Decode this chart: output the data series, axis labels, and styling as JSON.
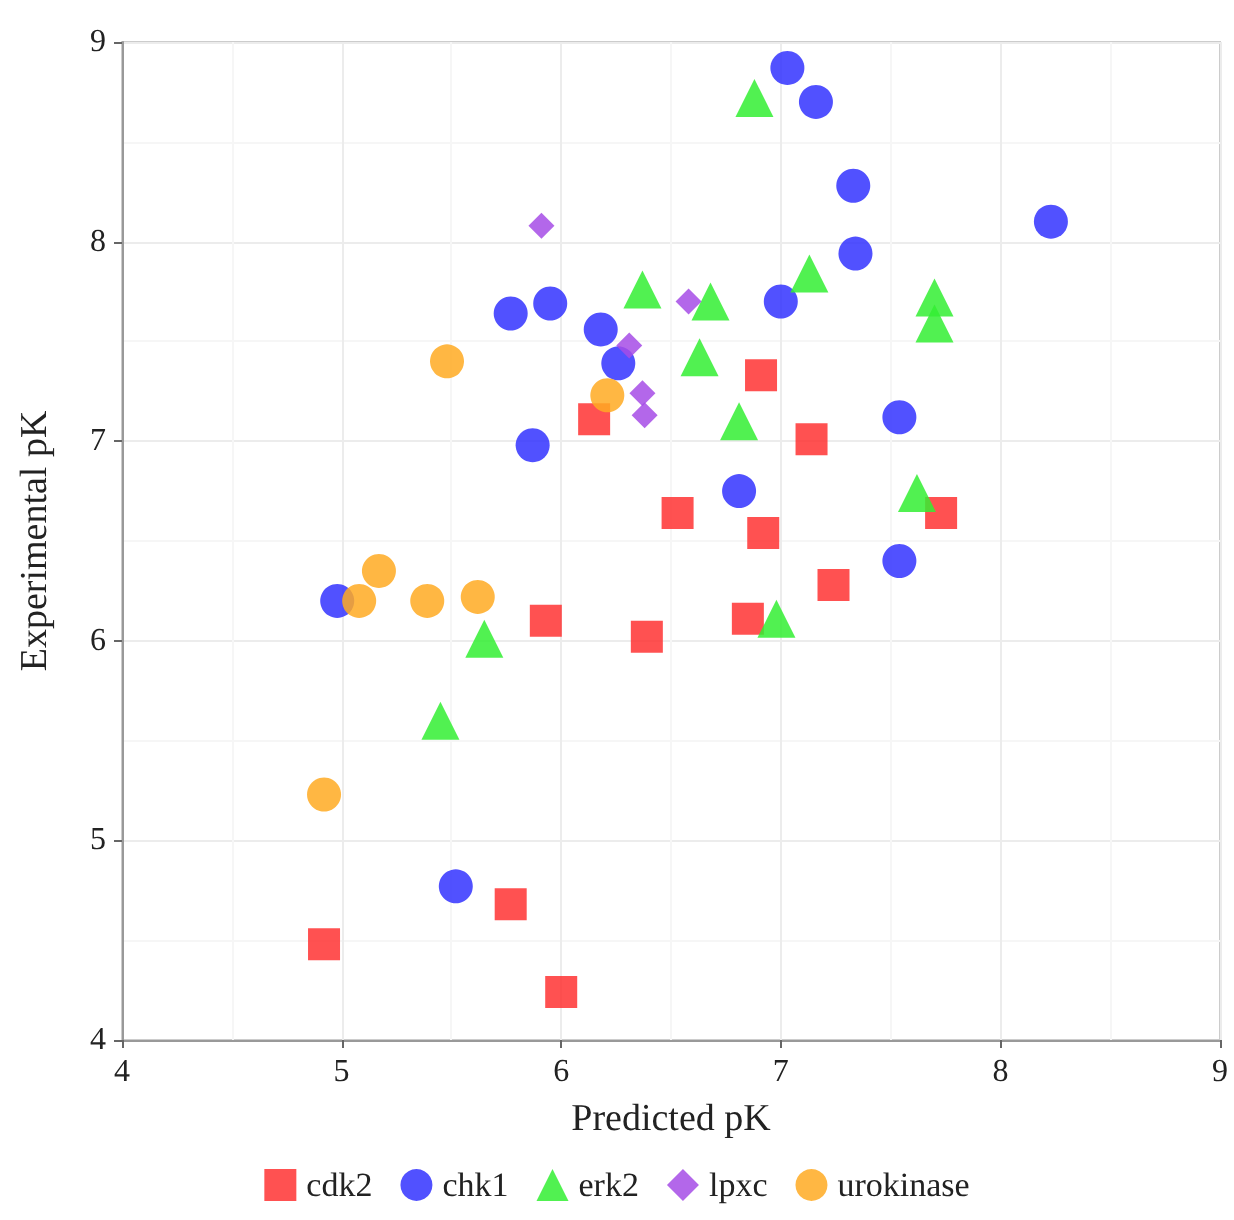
{
  "chart_data": {
    "type": "scatter",
    "xlabel": "Predicted pK",
    "ylabel": "Experimental pK",
    "xlim": [
      4,
      9
    ],
    "xticks": [
      4,
      5,
      6,
      7,
      8,
      9
    ],
    "ylim": [
      4,
      9
    ],
    "yticks": [
      4,
      5,
      6,
      7,
      8,
      9
    ],
    "grid": true,
    "legend": "bottom",
    "series": [
      {
        "name": "cdk2",
        "color": "#ff3333",
        "marker": "square",
        "x": [
          4.92,
          5.77,
          6.0,
          5.93,
          6.39,
          6.15,
          6.91,
          7.14,
          7.73,
          6.53,
          6.92,
          7.24,
          6.85
        ],
        "values": [
          4.48,
          4.68,
          4.24,
          6.1,
          6.02,
          7.11,
          7.33,
          7.01,
          6.64,
          6.64,
          6.54,
          6.28,
          6.11
        ]
      },
      {
        "name": "chk1",
        "color": "#3333ff",
        "marker": "circle",
        "x": [
          5.52,
          4.98,
          5.77,
          5.95,
          6.18,
          6.26,
          5.87,
          7.03,
          7.16,
          7.33,
          8.23,
          7.34,
          7.0,
          7.54,
          6.81,
          7.54
        ],
        "values": [
          4.77,
          6.2,
          7.64,
          7.69,
          7.56,
          7.39,
          6.98,
          8.87,
          8.7,
          8.28,
          8.1,
          7.94,
          7.7,
          7.12,
          6.75,
          6.4
        ]
      },
      {
        "name": "erk2",
        "color": "#33ee33",
        "marker": "triangle",
        "x": [
          5.45,
          5.65,
          6.37,
          6.88,
          7.13,
          6.68,
          7.7,
          7.7,
          6.63,
          6.81,
          7.62,
          6.98
        ],
        "values": [
          5.6,
          6.01,
          7.76,
          8.72,
          7.84,
          7.7,
          7.72,
          7.59,
          7.42,
          7.1,
          6.74,
          6.11
        ]
      },
      {
        "name": "lpxc",
        "color": "#a64ce6",
        "marker": "diamond",
        "x": [
          5.91,
          6.31,
          6.37,
          6.38,
          6.58
        ],
        "values": [
          8.08,
          7.48,
          7.24,
          7.13,
          7.7
        ]
      },
      {
        "name": "urokinase",
        "color": "#ffaa22",
        "marker": "circle",
        "x": [
          4.92,
          5.08,
          5.17,
          5.39,
          5.62,
          5.48,
          6.21
        ],
        "values": [
          5.23,
          6.2,
          6.35,
          6.2,
          6.22,
          7.4,
          7.23
        ]
      }
    ]
  }
}
